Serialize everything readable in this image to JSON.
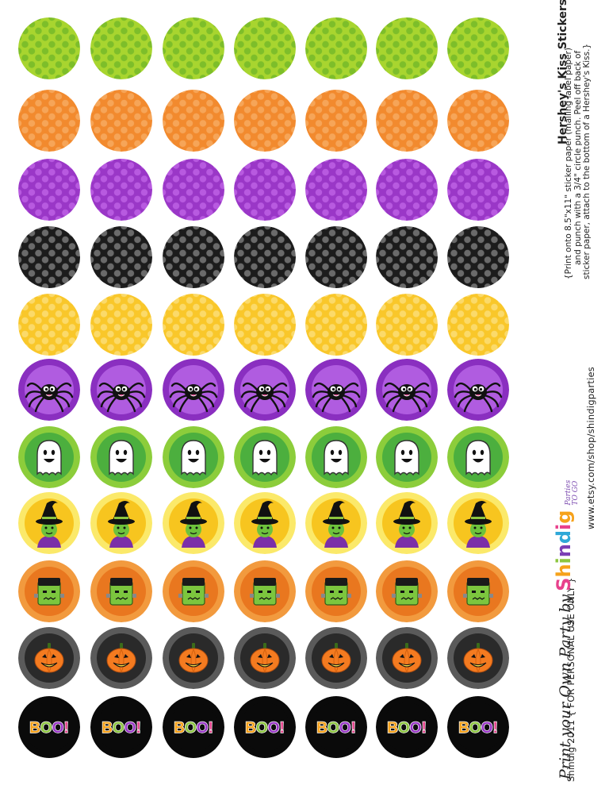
{
  "sheet": {
    "title": "Hershey's Kiss Stickers",
    "instructions": [
      "{Print onto 8.5\"x11\" sticker paper (mailing label paper)",
      "and punch with a 3/4\" circle punch. Peel off back of",
      "sticker paper, attach to the bottom of a Hershey's Kiss.}"
    ],
    "copyright": "Shindig 2011 { FOR PERSONAL USE ONLY }",
    "url": "www.etsy.com/shop/shindigparties",
    "tagline": "Print your Own Party by",
    "brand": {
      "name": "Shindig",
      "sub1": "Parties",
      "sub2": "TO GO",
      "letter_colors": [
        "#e8418c",
        "#f6a21b",
        "#8dc63f",
        "#7b3fb5",
        "#2fa8d8",
        "#e8418c",
        "#f6a21b"
      ]
    }
  },
  "sticker_columns": 7,
  "sticker_rows": [
    {
      "design": "polka-dots",
      "label": "green",
      "base": "#a8d52f",
      "dot": "#7dbe2a"
    },
    {
      "design": "polka-dots",
      "label": "orange",
      "base": "#f28a2e",
      "dot": "#f6a558"
    },
    {
      "design": "polka-dots",
      "label": "purple",
      "base": "#9a37c7",
      "dot": "#b85ae0"
    },
    {
      "design": "polka-dots",
      "label": "black",
      "base": "#1c1c1c",
      "dot": "#6a6a6a"
    },
    {
      "design": "polka-dots",
      "label": "yellow",
      "base": "#f9c72a",
      "dot": "#fbda6a"
    },
    {
      "design": "spider",
      "icon": "spider-icon",
      "outer": "#8a2fc0",
      "inner": "#b05ce0"
    },
    {
      "design": "ghost",
      "icon": "ghost-icon",
      "outer": "#8ccd3b",
      "inner": "#4caf3e"
    },
    {
      "design": "witch",
      "icon": "witch-icon",
      "outer": "#fbe96a",
      "inner": "#f7c51f"
    },
    {
      "design": "frankenstein",
      "icon": "frankenstein-icon",
      "outer": "#f29a3e",
      "inner": "#e9771f"
    },
    {
      "design": "pumpkin",
      "icon": "pumpkin-icon",
      "outer": "#5a5a5a",
      "inner": "#2a2a2a"
    },
    {
      "design": "boo",
      "icon": "boo-text",
      "outer": "#0a0a0a",
      "inner": "#0a0a0a",
      "text": "BOO!",
      "letter_colors": [
        "#f6a21b",
        "#8dc63f",
        "#9a37c7",
        "#e8418c"
      ]
    }
  ]
}
